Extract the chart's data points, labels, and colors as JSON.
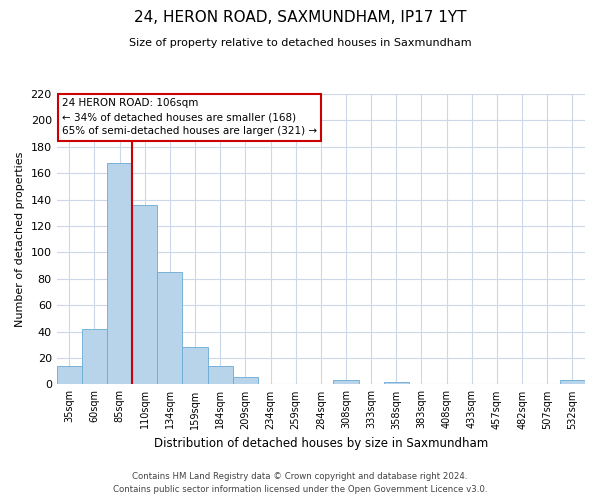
{
  "title": "24, HERON ROAD, SAXMUNDHAM, IP17 1YT",
  "subtitle": "Size of property relative to detached houses in Saxmundham",
  "xlabel": "Distribution of detached houses by size in Saxmundham",
  "ylabel": "Number of detached properties",
  "bar_labels": [
    "35sqm",
    "60sqm",
    "85sqm",
    "110sqm",
    "134sqm",
    "159sqm",
    "184sqm",
    "209sqm",
    "234sqm",
    "259sqm",
    "284sqm",
    "308sqm",
    "333sqm",
    "358sqm",
    "383sqm",
    "408sqm",
    "433sqm",
    "457sqm",
    "482sqm",
    "507sqm",
    "532sqm"
  ],
  "bar_values": [
    14,
    42,
    168,
    136,
    85,
    28,
    14,
    6,
    0,
    0,
    0,
    3,
    0,
    2,
    0,
    0,
    0,
    0,
    0,
    0,
    3
  ],
  "bar_color": "#b8d4eb",
  "bar_edge_color": "#6aaad4",
  "vline_x_index": 2,
  "vline_color": "#cc0000",
  "ylim": [
    0,
    220
  ],
  "yticks": [
    0,
    20,
    40,
    60,
    80,
    100,
    120,
    140,
    160,
    180,
    200,
    220
  ],
  "annotation_title": "24 HERON ROAD: 106sqm",
  "annotation_line1": "← 34% of detached houses are smaller (168)",
  "annotation_line2": "65% of semi-detached houses are larger (321) →",
  "annotation_box_color": "#ffffff",
  "annotation_box_edge": "#cc0000",
  "footer_line1": "Contains HM Land Registry data © Crown copyright and database right 2024.",
  "footer_line2": "Contains public sector information licensed under the Open Government Licence v3.0.",
  "background_color": "#ffffff",
  "grid_color": "#ccd8e8"
}
